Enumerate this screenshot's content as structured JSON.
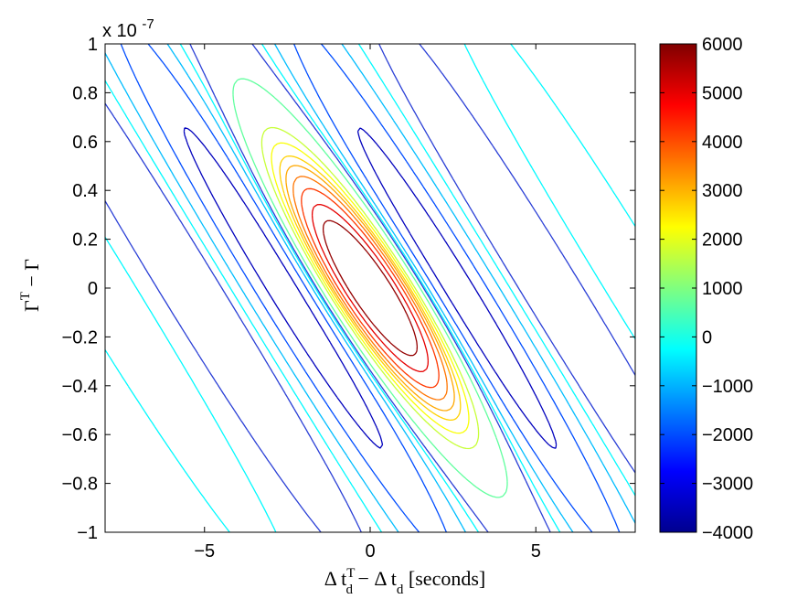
{
  "chart_data": {
    "type": "contour",
    "title": "",
    "xlabel": "Δ t_d^T − Δ t_d [seconds]",
    "ylabel": "Γ^T − Γ",
    "xlim": [
      -8,
      8
    ],
    "ylim": [
      -1e-07,
      1e-07
    ],
    "y_exponent_label": "x 10",
    "y_exponent_power": "-7",
    "x_ticks": [
      -5,
      0,
      5
    ],
    "x_tick_labels": [
      "−5",
      "0",
      "5"
    ],
    "y_ticks": [
      -1,
      -0.8,
      -0.6,
      -0.4,
      -0.2,
      0,
      0.2,
      0.4,
      0.6,
      0.8,
      1
    ],
    "y_tick_labels": [
      "−1",
      "−0.8",
      "−0.6",
      "−0.4",
      "−0.2",
      "0",
      "0.2",
      "0.4",
      "0.6",
      "0.8",
      "1"
    ],
    "colorbar": {
      "colormap": "jet",
      "clim": [
        -4000,
        6000
      ],
      "ticks": [
        -4000,
        -3000,
        -2000,
        -1000,
        0,
        1000,
        2000,
        3000,
        4000,
        5000,
        6000
      ],
      "tick_labels": [
        "−4000",
        "−3000",
        "−2000",
        "−1000",
        "0",
        "1000",
        "2000",
        "3000",
        "4000",
        "5000",
        "6000"
      ]
    },
    "contour_levels": [
      -3400,
      -2000,
      -900,
      -300,
      700,
      1700,
      2200,
      2700,
      3100,
      3600,
      4200,
      5000,
      5800
    ],
    "dashed_level": 0,
    "ridge_direction": "diagonal from upper-left to lower-right",
    "grid": false,
    "legend": "none"
  }
}
